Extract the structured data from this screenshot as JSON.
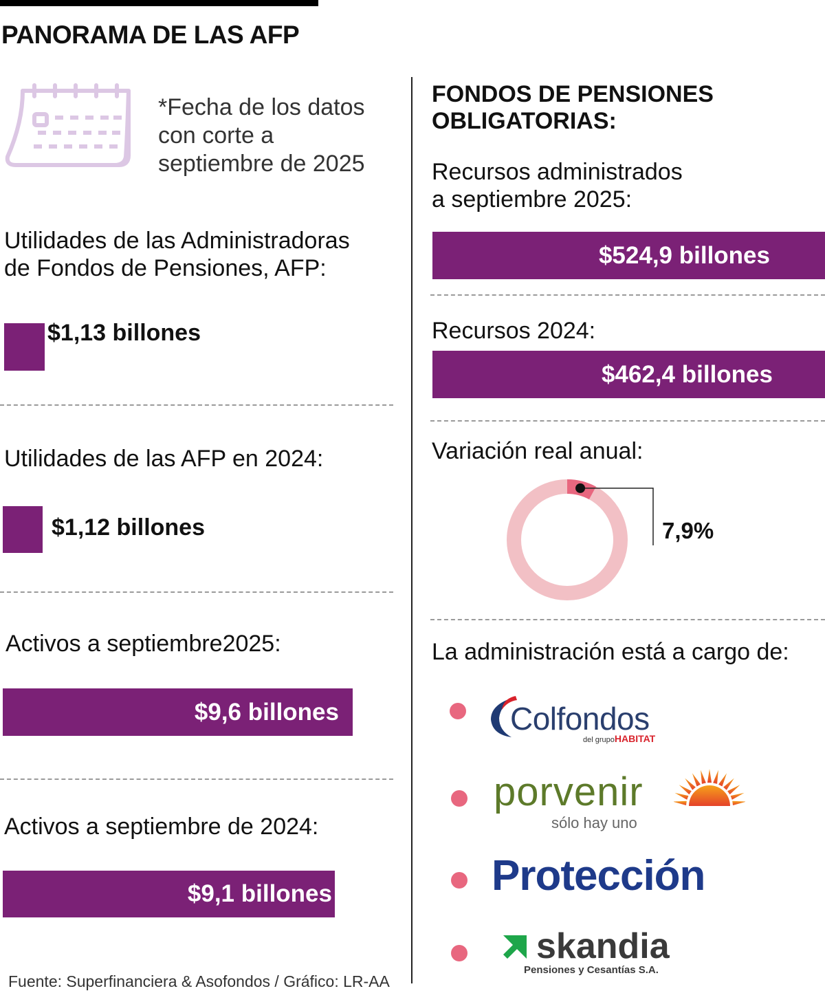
{
  "title": "PANORAMA DE LAS AFP",
  "date_note": [
    "*Fecha de los datos",
    "con corte a",
    "septiembre de 2025"
  ],
  "left": {
    "profits_2025_label": [
      "Utilidades de las Administradoras",
      "de Fondos de Pensiones, AFP:"
    ],
    "profits_2025_value": "$1,13 billones",
    "profits_2024_label": "Utilidades de las AFP en 2024:",
    "profits_2024_value": "$1,12 billones",
    "assets_2025_label": "Activos a septiembre2025:",
    "assets_2025_value": "$9,6 billones",
    "assets_2024_label": "Activos a septiembre de 2024:",
    "assets_2024_value": "$9,1 billones"
  },
  "right": {
    "section_title": [
      "FONDOS DE PENSIONES",
      "OBLIGATORIAS:"
    ],
    "resources_2025_label": [
      "Recursos administrados",
      "a septiembre 2025:"
    ],
    "resources_2025_value": "$524,9 billones",
    "resources_2024_label": "Recursos 2024:",
    "resources_2024_value": "$462,4 billones",
    "variation_label": "Variación real anual:",
    "variation_value": "7,9%",
    "admin_label": "La administración está a cargo de:"
  },
  "logos": {
    "colfondos": "Colfondos",
    "colfondos_sub_prefix": "del grupo",
    "colfondos_sub_brand": "HABITAT",
    "porvenir": "porvenir",
    "porvenir_sub": "sólo hay uno",
    "proteccion": "Protección",
    "skandia": "skandia",
    "skandia_sub": "Pensiones y Cesantías S.A."
  },
  "source": "Fuente: Superfinanciera & Asofondos / Gráfico: LR-AA",
  "colors": {
    "purple": "#7b2176",
    "donut_light": "#f2c0c5",
    "donut_accent": "#e8677f",
    "calendar": "#dcc7e4"
  },
  "chart_data": [
    {
      "type": "bar",
      "title": "Utilidades de las AFP",
      "categories": [
        "Utilidades AFP sep 2025",
        "Utilidades AFP 2024"
      ],
      "values": [
        1.13,
        1.12
      ],
      "unit": "billones de pesos"
    },
    {
      "type": "bar",
      "title": "Activos",
      "categories": [
        "Activos a septiembre 2025",
        "Activos a septiembre de 2024"
      ],
      "values": [
        9.6,
        9.1
      ],
      "unit": "billones de pesos"
    },
    {
      "type": "bar",
      "title": "Fondos de pensiones obligatorias",
      "categories": [
        "Recursos administrados a septiembre 2025",
        "Recursos 2024"
      ],
      "values": [
        524.9,
        462.4
      ],
      "unit": "billones de pesos"
    },
    {
      "type": "pie",
      "title": "Variación real anual",
      "categories": [
        "Variación",
        "Resto"
      ],
      "values": [
        7.9,
        92.1
      ],
      "unit": "%"
    }
  ]
}
